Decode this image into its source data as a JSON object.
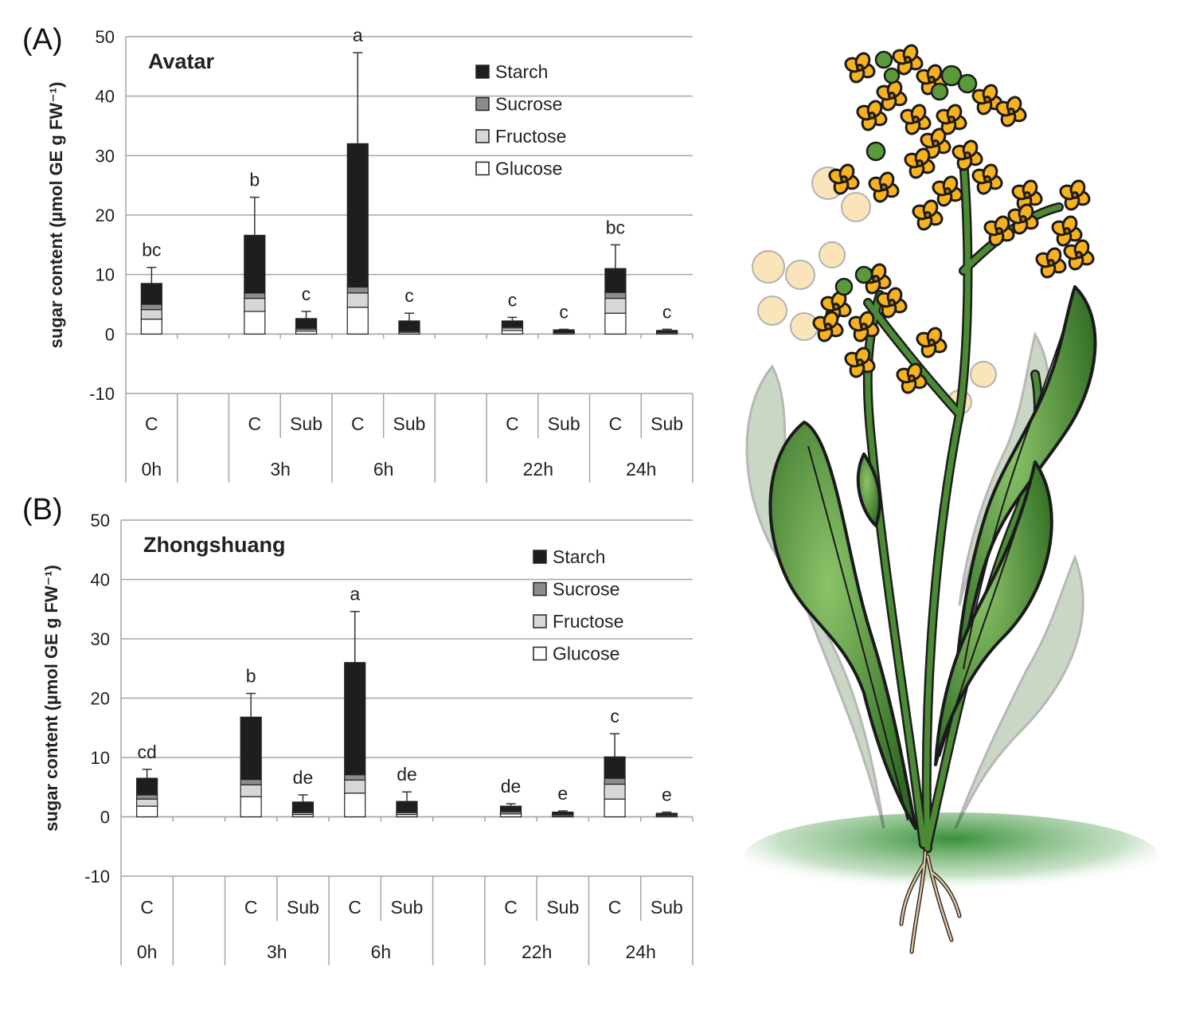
{
  "figure": {
    "colors": {
      "starch": "#1e1e1e",
      "sucrose": "#8c8c8c",
      "fructose": "#d7d7d7",
      "glucose": "#ffffff",
      "grid": "#a6a6a6",
      "axis": "#a6a6a6"
    },
    "plant_illustration": {
      "icon": "rapeseed-plant-icon",
      "flower_color": "#f7b21e",
      "leaf_color": "#4c8a35"
    }
  },
  "chart_data": [
    {
      "type": "bar",
      "stacked": true,
      "panel_label": "(A)",
      "title": "Avatar",
      "ylabel": "sugar content (µmol GE g FW⁻¹)",
      "ylim": [
        -10,
        50
      ],
      "yticks": [
        -10,
        0,
        10,
        20,
        30,
        40,
        50
      ],
      "grid": true,
      "legend_position": "top-right",
      "legend": [
        "Starch",
        "Sucrose",
        "Fructose",
        "Glucose"
      ],
      "categories": [
        {
          "treatment": "C",
          "time": "0h"
        },
        {
          "treatment": "",
          "time": ""
        },
        {
          "treatment": "C",
          "time": "3h"
        },
        {
          "treatment": "Sub",
          "time": "3h"
        },
        {
          "treatment": "C",
          "time": "6h"
        },
        {
          "treatment": "Sub",
          "time": "6h"
        },
        {
          "treatment": "",
          "time": ""
        },
        {
          "treatment": "C",
          "time": "22h"
        },
        {
          "treatment": "Sub",
          "time": "22h"
        },
        {
          "treatment": "C",
          "time": "24h"
        },
        {
          "treatment": "Sub",
          "time": "24h"
        }
      ],
      "time_groups": [
        {
          "label": "0h",
          "start": 0,
          "end": 0
        },
        {
          "label": "",
          "start": 1,
          "end": 1
        },
        {
          "label": "3h",
          "start": 2,
          "end": 3
        },
        {
          "label": "6h",
          "start": 4,
          "end": 5
        },
        {
          "label": "",
          "start": 6,
          "end": 6
        },
        {
          "label": "22h",
          "start": 7,
          "end": 8
        },
        {
          "label": "24h",
          "start": 9,
          "end": 10
        }
      ],
      "series": [
        {
          "name": "Glucose",
          "values": [
            2.5,
            null,
            3.8,
            0.5,
            4.5,
            0.3,
            null,
            0.6,
            0.2,
            3.5,
            0.2
          ]
        },
        {
          "name": "Fructose",
          "values": [
            1.6,
            null,
            2.2,
            0.3,
            2.4,
            0.2,
            null,
            0.4,
            0.1,
            2.5,
            0.1
          ]
        },
        {
          "name": "Sucrose",
          "values": [
            0.9,
            null,
            0.9,
            0.2,
            1.0,
            0.1,
            null,
            0.2,
            0.1,
            1.0,
            0.1
          ]
        },
        {
          "name": "Starch",
          "values": [
            3.5,
            null,
            9.7,
            1.6,
            24.1,
            1.6,
            null,
            1.0,
            0.3,
            4.0,
            0.2
          ]
        }
      ],
      "totals": [
        8.5,
        null,
        16.6,
        2.6,
        32.0,
        2.2,
        null,
        2.2,
        0.7,
        11.0,
        0.6
      ],
      "error_upper": [
        11.2,
        null,
        23.0,
        3.8,
        47.3,
        3.5,
        null,
        2.8,
        0.8,
        15.0,
        0.8
      ],
      "significance": [
        "bc",
        "",
        "b",
        "c",
        "a",
        "c",
        "",
        "c",
        "c",
        "bc",
        "c"
      ]
    },
    {
      "type": "bar",
      "stacked": true,
      "panel_label": "(B)",
      "title": "Zhongshuang",
      "ylabel": "sugar content (µmol GE g FW⁻¹)",
      "ylim": [
        -10,
        50
      ],
      "yticks": [
        -10,
        0,
        10,
        20,
        30,
        40,
        50
      ],
      "grid": true,
      "legend_position": "top-right",
      "legend": [
        "Starch",
        "Sucrose",
        "Fructose",
        "Glucose"
      ],
      "categories": [
        {
          "treatment": "C",
          "time": "0h"
        },
        {
          "treatment": "",
          "time": ""
        },
        {
          "treatment": "C",
          "time": "3h"
        },
        {
          "treatment": "Sub",
          "time": "3h"
        },
        {
          "treatment": "C",
          "time": "6h"
        },
        {
          "treatment": "Sub",
          "time": "6h"
        },
        {
          "treatment": "",
          "time": ""
        },
        {
          "treatment": "C",
          "time": "22h"
        },
        {
          "treatment": "Sub",
          "time": "22h"
        },
        {
          "treatment": "C",
          "time": "24h"
        },
        {
          "treatment": "Sub",
          "time": "24h"
        }
      ],
      "time_groups": [
        {
          "label": "0h",
          "start": 0,
          "end": 0
        },
        {
          "label": "",
          "start": 1,
          "end": 1
        },
        {
          "label": "3h",
          "start": 2,
          "end": 3
        },
        {
          "label": "6h",
          "start": 4,
          "end": 5
        },
        {
          "label": "",
          "start": 6,
          "end": 6
        },
        {
          "label": "22h",
          "start": 7,
          "end": 8
        },
        {
          "label": "24h",
          "start": 9,
          "end": 10
        }
      ],
      "series": [
        {
          "name": "Glucose",
          "values": [
            1.8,
            null,
            3.4,
            0.4,
            4.0,
            0.4,
            null,
            0.5,
            0.2,
            3.0,
            0.2
          ]
        },
        {
          "name": "Fructose",
          "values": [
            1.2,
            null,
            2.0,
            0.3,
            2.2,
            0.3,
            null,
            0.3,
            0.2,
            2.5,
            0.1
          ]
        },
        {
          "name": "Sucrose",
          "values": [
            0.7,
            null,
            0.9,
            0.2,
            0.9,
            0.2,
            null,
            0.2,
            0.1,
            1.0,
            0.1
          ]
        },
        {
          "name": "Starch",
          "values": [
            2.8,
            null,
            10.5,
            1.6,
            18.9,
            1.7,
            null,
            0.8,
            0.3,
            3.6,
            0.2
          ]
        }
      ],
      "totals": [
        6.5,
        null,
        16.8,
        2.5,
        26.0,
        2.6,
        null,
        1.8,
        0.8,
        10.1,
        0.6
      ],
      "error_upper": [
        8.0,
        null,
        20.8,
        3.7,
        34.6,
        4.2,
        null,
        2.2,
        1.0,
        14.0,
        0.8
      ],
      "significance": [
        "cd",
        "",
        "b",
        "de",
        "a",
        "de",
        "",
        "de",
        "e",
        "c",
        "e"
      ]
    }
  ]
}
